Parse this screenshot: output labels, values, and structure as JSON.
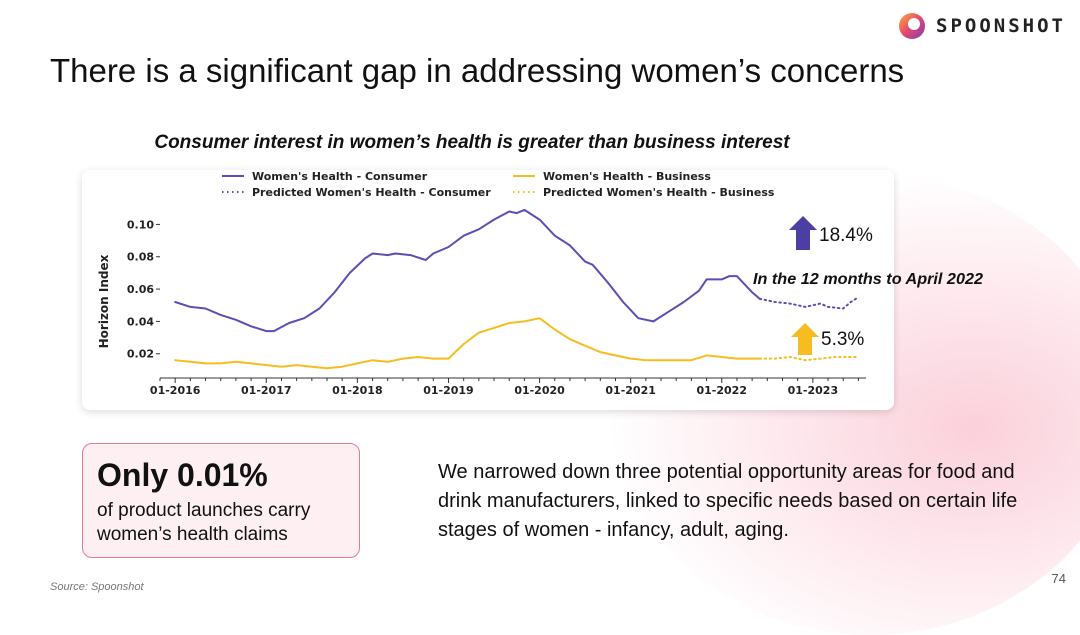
{
  "brand": {
    "name": "SPOONSHOT"
  },
  "title": "There is a significant gap in addressing women’s concerns",
  "chart_title": "Consumer interest in women’s health is greater than business interest",
  "chart_data": {
    "type": "line",
    "title": "Consumer interest in women’s health is greater than business interest",
    "ylabel": "Horizon Index",
    "xlabel": "",
    "ylim": [
      0.005,
      0.112
    ],
    "xlim": [
      "2015-11",
      "2023-08"
    ],
    "y_ticks": [
      0.02,
      0.04,
      0.06,
      0.08,
      0.1
    ],
    "y_tick_labels": [
      "0.02",
      "0.04",
      "0.06",
      "0.08",
      "0.10"
    ],
    "x_ticks": [
      "2016-01",
      "2017-01",
      "2018-01",
      "2019-01",
      "2020-01",
      "2021-01",
      "2022-01",
      "2023-01"
    ],
    "x_tick_labels": [
      "01-2016",
      "01-2017",
      "01-2018",
      "01-2019",
      "01-2020",
      "01-2021",
      "01-2022",
      "01-2023"
    ],
    "grid": false,
    "legend_placement": "top",
    "series": [
      {
        "name": "Women's Health - Consumer",
        "color": "#5a4fb4",
        "style": "solid",
        "points": [
          [
            "2016-01",
            0.052
          ],
          [
            "2016-03",
            0.049
          ],
          [
            "2016-05",
            0.048
          ],
          [
            "2016-07",
            0.044
          ],
          [
            "2016-09",
            0.041
          ],
          [
            "2016-11",
            0.037
          ],
          [
            "2017-01",
            0.034
          ],
          [
            "2017-02",
            0.034
          ],
          [
            "2017-04",
            0.039
          ],
          [
            "2017-06",
            0.042
          ],
          [
            "2017-08",
            0.048
          ],
          [
            "2017-10",
            0.058
          ],
          [
            "2017-12",
            0.07
          ],
          [
            "2018-02",
            0.079
          ],
          [
            "2018-03",
            0.082
          ],
          [
            "2018-05",
            0.081
          ],
          [
            "2018-06",
            0.082
          ],
          [
            "2018-08",
            0.081
          ],
          [
            "2018-10",
            0.078
          ],
          [
            "2018-11",
            0.082
          ],
          [
            "2019-01",
            0.086
          ],
          [
            "2019-03",
            0.093
          ],
          [
            "2019-05",
            0.097
          ],
          [
            "2019-07",
            0.103
          ],
          [
            "2019-09",
            0.108
          ],
          [
            "2019-10",
            0.107
          ],
          [
            "2019-11",
            0.109
          ],
          [
            "2020-01",
            0.103
          ],
          [
            "2020-03",
            0.093
          ],
          [
            "2020-05",
            0.087
          ],
          [
            "2020-07",
            0.077
          ],
          [
            "2020-08",
            0.075
          ],
          [
            "2020-10",
            0.064
          ],
          [
            "2020-12",
            0.052
          ],
          [
            "2021-02",
            0.042
          ],
          [
            "2021-04",
            0.04
          ],
          [
            "2021-06",
            0.046
          ],
          [
            "2021-08",
            0.052
          ],
          [
            "2021-10",
            0.059
          ],
          [
            "2021-11",
            0.066
          ],
          [
            "2022-01",
            0.066
          ],
          [
            "2022-02",
            0.068
          ],
          [
            "2022-03",
            0.068
          ],
          [
            "2022-05",
            0.058
          ],
          [
            "2022-06",
            0.054
          ]
        ]
      },
      {
        "name": "Predicted Women's Health - Consumer",
        "color": "#5a4fb4",
        "style": "dotted",
        "points": [
          [
            "2022-06",
            0.054
          ],
          [
            "2022-08",
            0.052
          ],
          [
            "2022-10",
            0.051
          ],
          [
            "2022-12",
            0.049
          ],
          [
            "2023-02",
            0.051
          ],
          [
            "2023-03",
            0.049
          ],
          [
            "2023-05",
            0.048
          ],
          [
            "2023-06",
            0.052
          ],
          [
            "2023-07",
            0.055
          ]
        ]
      },
      {
        "name": "Women's Health - Business",
        "color": "#f7bc1f",
        "style": "solid",
        "points": [
          [
            "2016-01",
            0.016
          ],
          [
            "2016-03",
            0.015
          ],
          [
            "2016-05",
            0.014
          ],
          [
            "2016-07",
            0.014
          ],
          [
            "2016-09",
            0.015
          ],
          [
            "2016-11",
            0.014
          ],
          [
            "2017-01",
            0.013
          ],
          [
            "2017-03",
            0.012
          ],
          [
            "2017-05",
            0.013
          ],
          [
            "2017-07",
            0.012
          ],
          [
            "2017-09",
            0.011
          ],
          [
            "2017-11",
            0.012
          ],
          [
            "2018-01",
            0.014
          ],
          [
            "2018-03",
            0.016
          ],
          [
            "2018-05",
            0.015
          ],
          [
            "2018-07",
            0.017
          ],
          [
            "2018-09",
            0.018
          ],
          [
            "2018-11",
            0.017
          ],
          [
            "2019-01",
            0.017
          ],
          [
            "2019-03",
            0.026
          ],
          [
            "2019-05",
            0.033
          ],
          [
            "2019-07",
            0.036
          ],
          [
            "2019-09",
            0.039
          ],
          [
            "2019-11",
            0.04
          ],
          [
            "2020-01",
            0.042
          ],
          [
            "2020-03",
            0.035
          ],
          [
            "2020-05",
            0.029
          ],
          [
            "2020-07",
            0.025
          ],
          [
            "2020-09",
            0.021
          ],
          [
            "2020-11",
            0.019
          ],
          [
            "2021-01",
            0.017
          ],
          [
            "2021-03",
            0.016
          ],
          [
            "2021-05",
            0.016
          ],
          [
            "2021-07",
            0.016
          ],
          [
            "2021-09",
            0.016
          ],
          [
            "2021-11",
            0.019
          ],
          [
            "2022-01",
            0.018
          ],
          [
            "2022-03",
            0.017
          ],
          [
            "2022-06",
            0.017
          ]
        ]
      },
      {
        "name": "Predicted Women's Health - Business",
        "color": "#f7bc1f",
        "style": "dotted",
        "points": [
          [
            "2022-06",
            0.017
          ],
          [
            "2022-08",
            0.017
          ],
          [
            "2022-10",
            0.018
          ],
          [
            "2022-12",
            0.016
          ],
          [
            "2023-02",
            0.017
          ],
          [
            "2023-04",
            0.018
          ],
          [
            "2023-07",
            0.018
          ]
        ]
      }
    ],
    "annotations": [
      {
        "type": "arrow-up",
        "color": "#4b3fa3",
        "label": "18.4%",
        "arrow_label": "18.4%"
      },
      {
        "type": "text",
        "label": "In the 12 months to April 2022"
      },
      {
        "type": "arrow-up",
        "color": "#f7bc1f",
        "label": "5.3%"
      }
    ]
  },
  "claim": {
    "big": "Only 0.01%",
    "small": "of product launches carry women’s health claims"
  },
  "body_text": "We narrowed down three potential opportunity areas for food and drink manufacturers, linked to specific needs based on certain life stages of women - infancy, adult, aging.",
  "source": "Source: Spoonshot",
  "page_number": "74",
  "colors": {
    "accent_pink": "#e07d92",
    "consumer": "#5a4fb4",
    "business": "#f7bc1f"
  }
}
